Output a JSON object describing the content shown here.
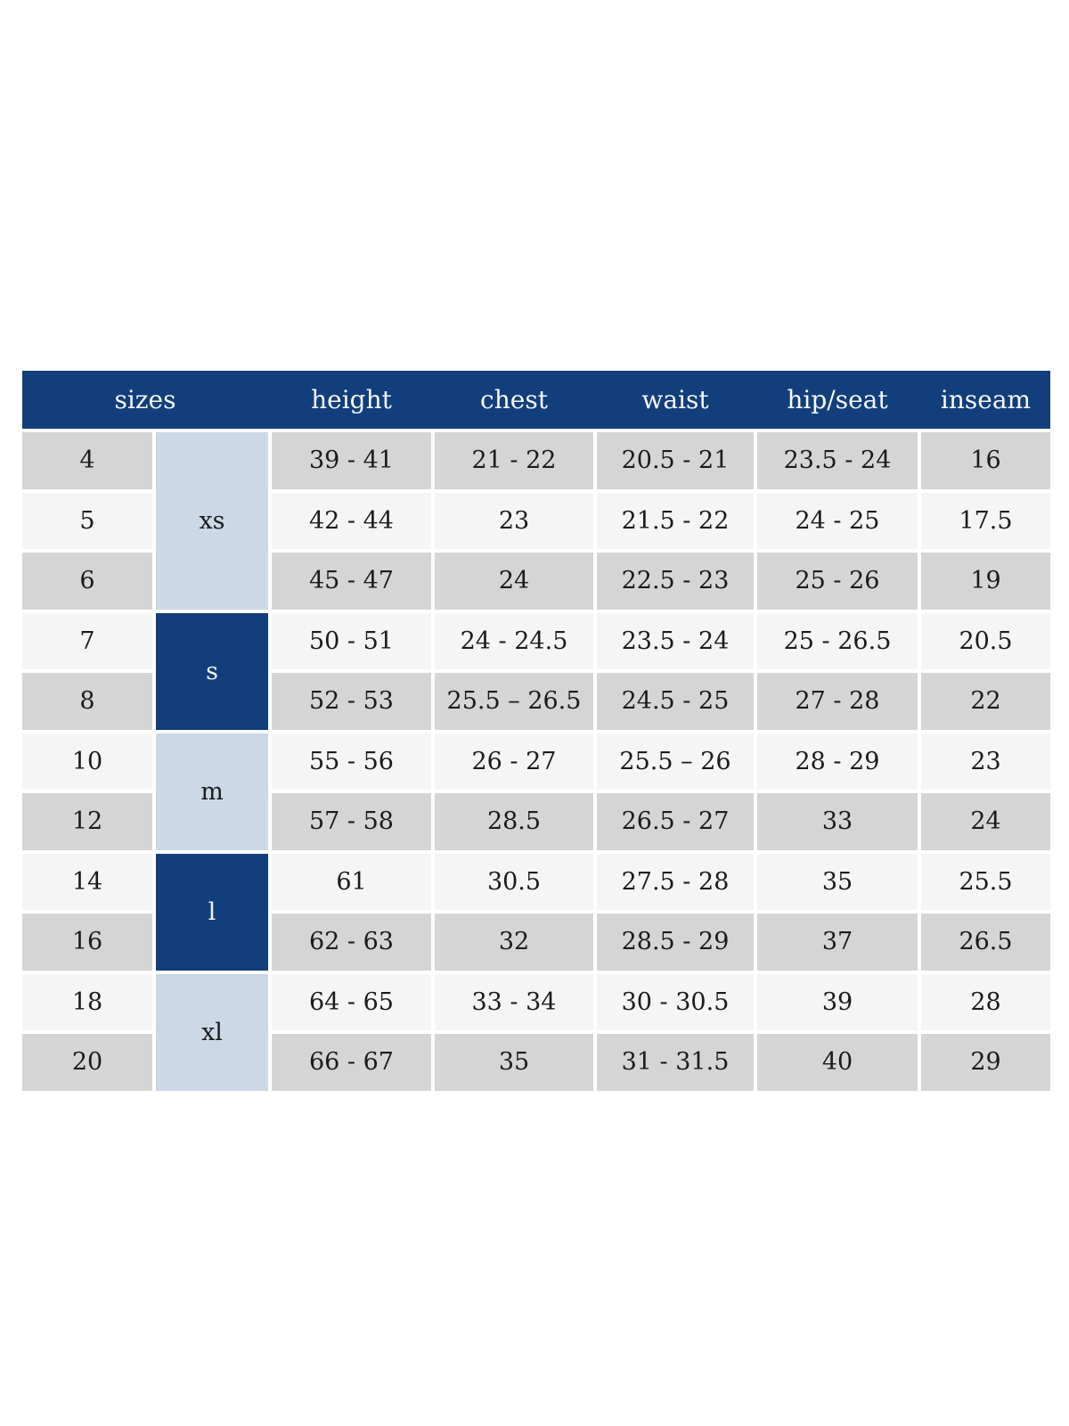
{
  "colors": {
    "page_background": "#ffffff",
    "header_bg": "#123e7b",
    "header_text": "#f7f9fc",
    "row_stripe_gray": "#d5d5d5",
    "row_stripe_light": "#f5f5f5",
    "group_light_bg": "#ccd8e6",
    "group_dark_bg": "#123e7b",
    "body_text": "#1b1b1b"
  },
  "chart_data": {
    "type": "table",
    "title": "",
    "header": {
      "sizes": "sizes",
      "height": "height",
      "chest": "chest",
      "waist": "waist",
      "hip_seat": "hip/seat",
      "inseam": "inseam"
    },
    "groups": [
      {
        "label": "xs",
        "span": 3,
        "variant": "light"
      },
      {
        "label": "s",
        "span": 2,
        "variant": "dark"
      },
      {
        "label": "m",
        "span": 2,
        "variant": "light"
      },
      {
        "label": "l",
        "span": 2,
        "variant": "dark"
      },
      {
        "label": "xl",
        "span": 2,
        "variant": "light"
      }
    ],
    "rows": [
      {
        "size": "4",
        "height": "39 - 41",
        "chest": "21 - 22",
        "waist": "20.5 - 21",
        "hip_seat": "23.5 - 24",
        "inseam": "16"
      },
      {
        "size": "5",
        "height": "42 - 44",
        "chest": "23",
        "waist": "21.5 - 22",
        "hip_seat": "24 - 25",
        "inseam": "17.5"
      },
      {
        "size": "6",
        "height": "45 - 47",
        "chest": "24",
        "waist": "22.5 - 23",
        "hip_seat": "25 - 26",
        "inseam": "19"
      },
      {
        "size": "7",
        "height": "50 - 51",
        "chest": "24 - 24.5",
        "waist": "23.5 - 24",
        "hip_seat": "25 - 26.5",
        "inseam": "20.5"
      },
      {
        "size": "8",
        "height": "52 - 53",
        "chest": "25.5 – 26.5",
        "waist": "24.5 - 25",
        "hip_seat": "27 - 28",
        "inseam": "22"
      },
      {
        "size": "10",
        "height": "55 - 56",
        "chest": "26 - 27",
        "waist": "25.5 – 26",
        "hip_seat": "28 - 29",
        "inseam": "23"
      },
      {
        "size": "12",
        "height": "57 - 58",
        "chest": "28.5",
        "waist": "26.5 - 27",
        "hip_seat": "33",
        "inseam": "24"
      },
      {
        "size": "14",
        "height": "61",
        "chest": "30.5",
        "waist": "27.5 - 28",
        "hip_seat": "35",
        "inseam": "25.5"
      },
      {
        "size": "16",
        "height": "62 - 63",
        "chest": "32",
        "waist": "28.5 - 29",
        "hip_seat": "37",
        "inseam": "26.5"
      },
      {
        "size": "18",
        "height": "64 - 65",
        "chest": "33 - 34",
        "waist": "30 - 30.5",
        "hip_seat": "39",
        "inseam": "28"
      },
      {
        "size": "20",
        "height": "66 - 67",
        "chest": "35",
        "waist": "31 - 31.5",
        "hip_seat": "40",
        "inseam": "29"
      }
    ]
  }
}
